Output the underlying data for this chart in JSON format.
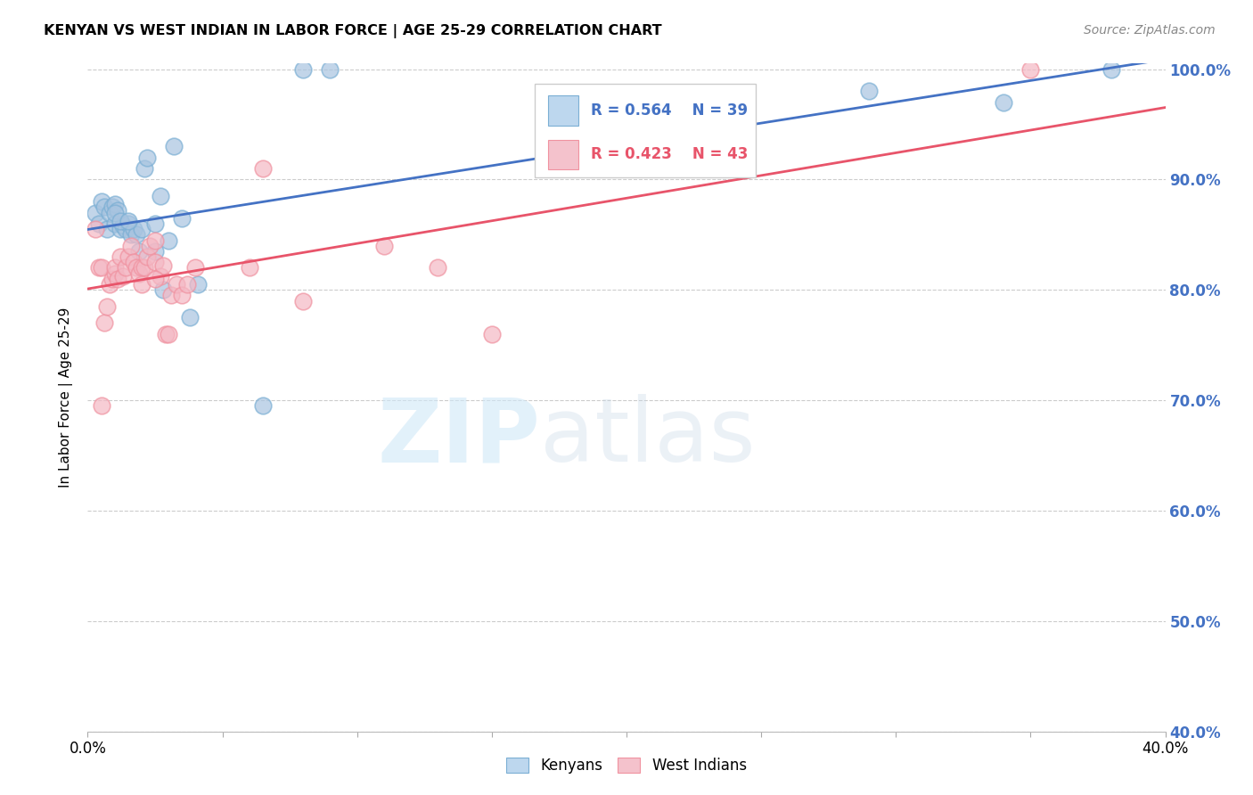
{
  "title": "KENYAN VS WEST INDIAN IN LABOR FORCE | AGE 25-29 CORRELATION CHART",
  "source": "Source: ZipAtlas.com",
  "ylabel": "In Labor Force | Age 25-29",
  "xlim": [
    0.0,
    0.4
  ],
  "ylim": [
    0.4,
    1.005
  ],
  "xtick_positions": [
    0.0,
    0.05,
    0.1,
    0.15,
    0.2,
    0.25,
    0.3,
    0.35,
    0.4
  ],
  "xtick_show_labels": [
    true,
    false,
    false,
    false,
    false,
    false,
    false,
    false,
    true
  ],
  "xtick_label_values": [
    "0.0%",
    "",
    "",
    "",
    "",
    "",
    "",
    "",
    "40.0%"
  ],
  "yticks": [
    0.4,
    0.5,
    0.6,
    0.7,
    0.8,
    0.9,
    1.0
  ],
  "ytick_right_labels": [
    "40.0%",
    "50.0%",
    "60.0%",
    "70.0%",
    "80.0%",
    "90.0%",
    "100.0%"
  ],
  "blue_R": 0.564,
  "blue_N": 39,
  "pink_R": 0.423,
  "pink_N": 43,
  "blue_color": "#A8C4E0",
  "pink_color": "#F4B8C4",
  "blue_edge_color": "#7BAFD4",
  "pink_edge_color": "#F092A0",
  "blue_line_color": "#4472C4",
  "pink_line_color": "#E8546A",
  "blue_legend_fill": "#BDD7EE",
  "pink_legend_fill": "#F4C2CC",
  "right_axis_color": "#4472C4",
  "grid_color": "#CCCCCC",
  "background_color": "#FFFFFF",
  "blue_x": [
    0.003,
    0.004,
    0.005,
    0.006,
    0.007,
    0.008,
    0.009,
    0.01,
    0.01,
    0.011,
    0.012,
    0.013,
    0.014,
    0.015,
    0.016,
    0.017,
    0.018,
    0.019,
    0.02,
    0.021,
    0.022,
    0.025,
    0.025,
    0.027,
    0.028,
    0.03,
    0.032,
    0.035,
    0.038,
    0.041,
    0.065,
    0.08,
    0.09,
    0.01,
    0.012,
    0.015,
    0.29,
    0.34,
    0.38
  ],
  "blue_y": [
    0.87,
    0.86,
    0.88,
    0.875,
    0.855,
    0.87,
    0.875,
    0.878,
    0.86,
    0.872,
    0.855,
    0.858,
    0.855,
    0.86,
    0.85,
    0.855,
    0.85,
    0.835,
    0.855,
    0.91,
    0.92,
    0.86,
    0.835,
    0.885,
    0.8,
    0.845,
    0.93,
    0.865,
    0.775,
    0.805,
    0.695,
    1.0,
    1.0,
    0.87,
    0.862,
    0.862,
    0.98,
    0.97,
    1.0
  ],
  "pink_x": [
    0.003,
    0.004,
    0.005,
    0.005,
    0.006,
    0.007,
    0.008,
    0.009,
    0.01,
    0.01,
    0.011,
    0.012,
    0.013,
    0.014,
    0.015,
    0.016,
    0.017,
    0.018,
    0.019,
    0.02,
    0.021,
    0.022,
    0.023,
    0.025,
    0.025,
    0.027,
    0.028,
    0.029,
    0.03,
    0.031,
    0.033,
    0.035,
    0.037,
    0.04,
    0.06,
    0.065,
    0.08,
    0.11,
    0.13,
    0.15,
    0.02,
    0.025,
    0.35
  ],
  "pink_y": [
    0.855,
    0.82,
    0.695,
    0.82,
    0.77,
    0.785,
    0.805,
    0.81,
    0.815,
    0.82,
    0.81,
    0.83,
    0.812,
    0.82,
    0.83,
    0.84,
    0.825,
    0.82,
    0.815,
    0.82,
    0.82,
    0.83,
    0.84,
    0.845,
    0.825,
    0.812,
    0.822,
    0.76,
    0.76,
    0.795,
    0.805,
    0.795,
    0.805,
    0.82,
    0.82,
    0.91,
    0.79,
    0.84,
    0.82,
    0.76,
    0.805,
    0.81,
    1.0
  ]
}
